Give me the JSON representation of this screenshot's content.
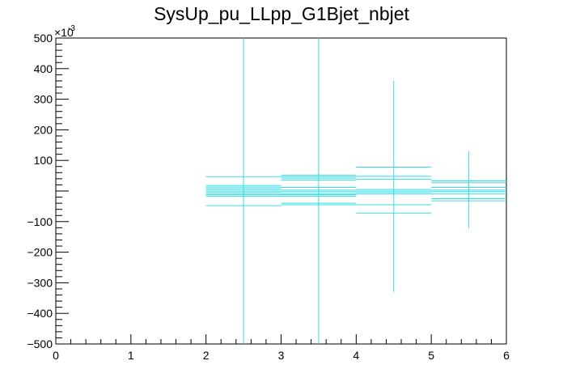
{
  "chart_data": {
    "type": "scatter",
    "title": "SysUp_pu_LLpp_G1Bjet_nbjet",
    "xlabel": "",
    "ylabel": "",
    "xlim": [
      0,
      6
    ],
    "ylim": [
      -500,
      500
    ],
    "y_exponent_label": "×10",
    "y_exponent": "-3",
    "x_ticks": [
      0,
      1,
      2,
      3,
      4,
      5,
      6
    ],
    "x_tick_labels": [
      "0",
      "1",
      "2",
      "3",
      "4",
      "5",
      "6"
    ],
    "y_ticks": [
      -500,
      -400,
      -300,
      -200,
      -100,
      100,
      200,
      300,
      400,
      500
    ],
    "y_tick_labels": [
      "−500",
      "−400",
      "−300",
      "−200",
      "−100",
      "100",
      "200",
      "300",
      "400",
      "500"
    ],
    "grid": false,
    "legend": "none",
    "color": "#33dde6",
    "series": [
      {
        "bin": [
          2,
          3
        ],
        "x_center": 2.5,
        "x_error_bar": [
          2.5,
          -500,
          500
        ],
        "y_values": [
          -48,
          -17,
          -12,
          -7,
          -2,
          3,
          8,
          13,
          18,
          47
        ]
      },
      {
        "bin": [
          3,
          4
        ],
        "x_center": 3.5,
        "x_error_bar": [
          3.5,
          -500,
          500
        ],
        "y_values": [
          -45,
          -40,
          -17,
          -12,
          -8,
          -2,
          3,
          12,
          36,
          42,
          47,
          52
        ]
      },
      {
        "bin": [
          4,
          5
        ],
        "x_center": 4.5,
        "x_error_bar": [
          4.5,
          -330,
          360
        ],
        "y_values": [
          -72,
          -45,
          -10,
          -5,
          0,
          5,
          38,
          48,
          78
        ]
      },
      {
        "bin": [
          5,
          6
        ],
        "x_center": 5.5,
        "x_error_bar": [
          5.5,
          -120,
          130
        ],
        "y_values": [
          -32,
          -25,
          -10,
          -2,
          3,
          12,
          27,
          33
        ]
      }
    ]
  }
}
